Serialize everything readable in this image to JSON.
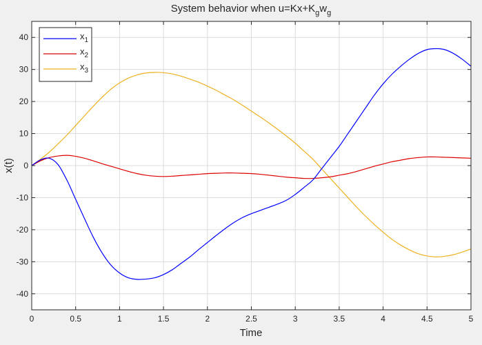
{
  "chart_data": {
    "type": "line",
    "title": "System behavior when u=Kx+K",
    "title_sub1": "g",
    "title_mid": "w",
    "title_sub2": "g",
    "xlabel": "Time",
    "ylabel": "x(t)",
    "xlim": [
      0,
      5
    ],
    "ylim": [
      -45,
      45
    ],
    "xticks": [
      0,
      0.5,
      1,
      1.5,
      2,
      2.5,
      3,
      3.5,
      4,
      4.5,
      5
    ],
    "yticks": [
      -40,
      -30,
      -20,
      -10,
      0,
      10,
      20,
      30,
      40
    ],
    "xtick_labels": [
      "0",
      "0.5",
      "1",
      "1.5",
      "2",
      "2.5",
      "3",
      "3.5",
      "4",
      "4.5",
      "5"
    ],
    "ytick_labels": [
      "-40",
      "-30",
      "-20",
      "-10",
      "0",
      "10",
      "20",
      "30",
      "40"
    ],
    "grid": true,
    "legend_position": "top-left",
    "series": [
      {
        "name": "x",
        "sub": "1",
        "color": "#0000ff",
        "x": [
          0,
          0.1,
          0.2,
          0.3,
          0.4,
          0.5,
          0.6,
          0.7,
          0.8,
          0.9,
          1.0,
          1.1,
          1.2,
          1.3,
          1.4,
          1.5,
          1.6,
          1.7,
          1.8,
          1.9,
          2.0,
          2.1,
          2.2,
          2.3,
          2.4,
          2.5,
          2.6,
          2.7,
          2.8,
          2.9,
          3.0,
          3.1,
          3.2,
          3.3,
          3.4,
          3.5,
          3.6,
          3.7,
          3.8,
          3.9,
          4.0,
          4.1,
          4.2,
          4.3,
          4.4,
          4.5,
          4.6,
          4.7,
          4.8,
          4.9,
          5.0
        ],
        "values": [
          0,
          1.8,
          2.3,
          0.3,
          -4.5,
          -10.5,
          -16.5,
          -22.3,
          -27.2,
          -31.0,
          -33.5,
          -35.0,
          -35.5,
          -35.4,
          -35.0,
          -34.0,
          -32.5,
          -30.5,
          -28.5,
          -26.2,
          -24.0,
          -21.8,
          -19.7,
          -17.8,
          -16.2,
          -15.0,
          -14.0,
          -13.0,
          -12.0,
          -10.8,
          -9.0,
          -6.8,
          -4.5,
          -1.0,
          2.5,
          6.0,
          10.0,
          14.0,
          18.0,
          22.0,
          25.5,
          28.5,
          31.0,
          33.2,
          35.0,
          36.2,
          36.5,
          36.2,
          35.0,
          33.2,
          31.0
        ]
      },
      {
        "name": "x",
        "sub": "2",
        "color": "#dd0000",
        "x": [
          0,
          0.1,
          0.2,
          0.3,
          0.4,
          0.5,
          0.6,
          0.7,
          0.8,
          0.9,
          1.0,
          1.1,
          1.2,
          1.3,
          1.4,
          1.5,
          1.6,
          1.7,
          1.8,
          1.9,
          2.0,
          2.1,
          2.2,
          2.3,
          2.4,
          2.5,
          2.6,
          2.7,
          2.8,
          2.9,
          3.0,
          3.1,
          3.2,
          3.3,
          3.4,
          3.5,
          3.6,
          3.7,
          3.8,
          3.9,
          4.0,
          4.1,
          4.2,
          4.3,
          4.4,
          4.5,
          4.6,
          4.7,
          4.8,
          4.9,
          5.0
        ],
        "values": [
          0,
          1.5,
          2.5,
          3.0,
          3.2,
          2.9,
          2.3,
          1.5,
          0.6,
          -0.2,
          -1.0,
          -1.8,
          -2.5,
          -3.0,
          -3.3,
          -3.4,
          -3.3,
          -3.1,
          -2.9,
          -2.7,
          -2.5,
          -2.4,
          -2.3,
          -2.3,
          -2.4,
          -2.5,
          -2.7,
          -3.0,
          -3.3,
          -3.6,
          -3.8,
          -4.0,
          -4.0,
          -3.8,
          -3.5,
          -3.0,
          -2.5,
          -1.8,
          -1.0,
          -0.2,
          0.5,
          1.2,
          1.7,
          2.2,
          2.5,
          2.7,
          2.7,
          2.6,
          2.5,
          2.4,
          2.3
        ]
      },
      {
        "name": "x",
        "sub": "3",
        "color": "#edb120",
        "x": [
          0,
          0.1,
          0.2,
          0.3,
          0.4,
          0.5,
          0.6,
          0.7,
          0.8,
          0.9,
          1.0,
          1.1,
          1.2,
          1.3,
          1.4,
          1.5,
          1.6,
          1.7,
          1.8,
          1.9,
          2.0,
          2.1,
          2.2,
          2.3,
          2.4,
          2.5,
          2.6,
          2.7,
          2.8,
          2.9,
          3.0,
          3.1,
          3.2,
          3.3,
          3.4,
          3.5,
          3.6,
          3.7,
          3.8,
          3.9,
          4.0,
          4.1,
          4.2,
          4.3,
          4.4,
          4.5,
          4.6,
          4.7,
          4.8,
          4.9,
          5.0
        ],
        "values": [
          0,
          2.0,
          4.2,
          6.8,
          9.5,
          12.5,
          15.5,
          18.5,
          21.3,
          23.8,
          25.8,
          27.3,
          28.3,
          28.9,
          29.1,
          29.0,
          28.6,
          27.9,
          27.0,
          26.0,
          24.8,
          23.5,
          22.0,
          20.5,
          18.8,
          17.0,
          15.2,
          13.3,
          11.3,
          9.2,
          7.0,
          4.5,
          2.0,
          -1.0,
          -4.0,
          -7.0,
          -10.0,
          -13.0,
          -15.8,
          -18.4,
          -20.8,
          -23.0,
          -24.8,
          -26.3,
          -27.5,
          -28.2,
          -28.5,
          -28.3,
          -27.8,
          -27.0,
          -26.0
        ]
      }
    ]
  }
}
